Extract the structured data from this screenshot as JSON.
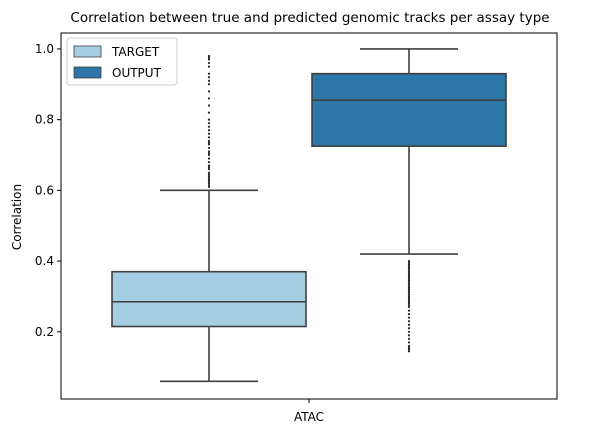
{
  "chart_data": {
    "type": "box",
    "title": "Correlation between true and predicted genomic tracks per assay type",
    "xlabel": "",
    "ylabel": "Correlation",
    "categories": [
      "ATAC"
    ],
    "ylim": [
      0.01,
      1.045
    ],
    "yticks": [
      0.2,
      0.4,
      0.6,
      0.8,
      1.0
    ],
    "ytick_labels": [
      "0.2",
      "0.4",
      "0.6",
      "0.8",
      "1.0"
    ],
    "legend_position": "top-left",
    "series": [
      {
        "name": "TARGET",
        "color": "#a6cee3",
        "whisker_low": 0.06,
        "q1": 0.215,
        "median": 0.285,
        "q3": 0.37,
        "whisker_high": 0.6,
        "outliers": [
          0.61,
          0.615,
          0.62,
          0.625,
          0.63,
          0.635,
          0.64,
          0.645,
          0.65,
          0.66,
          0.665,
          0.67,
          0.68,
          0.69,
          0.7,
          0.705,
          0.71,
          0.72,
          0.73,
          0.735,
          0.74,
          0.75,
          0.76,
          0.77,
          0.78,
          0.79,
          0.8,
          0.82,
          0.84,
          0.86,
          0.88,
          0.9,
          0.91,
          0.92,
          0.93,
          0.95,
          0.96,
          0.97,
          0.975,
          0.98
        ]
      },
      {
        "name": "OUTPUT",
        "color": "#2c76a8",
        "whisker_low": 0.42,
        "q1": 0.725,
        "median": 0.855,
        "q3": 0.93,
        "whisker_high": 1.0,
        "outliers": [
          0.4,
          0.395,
          0.39,
          0.385,
          0.38,
          0.375,
          0.37,
          0.365,
          0.36,
          0.355,
          0.35,
          0.345,
          0.34,
          0.335,
          0.33,
          0.325,
          0.32,
          0.315,
          0.31,
          0.305,
          0.3,
          0.295,
          0.29,
          0.285,
          0.28,
          0.275,
          0.27,
          0.26,
          0.25,
          0.24,
          0.23,
          0.22,
          0.21,
          0.2,
          0.19,
          0.18,
          0.17,
          0.16,
          0.155,
          0.15,
          0.145
        ]
      }
    ]
  }
}
